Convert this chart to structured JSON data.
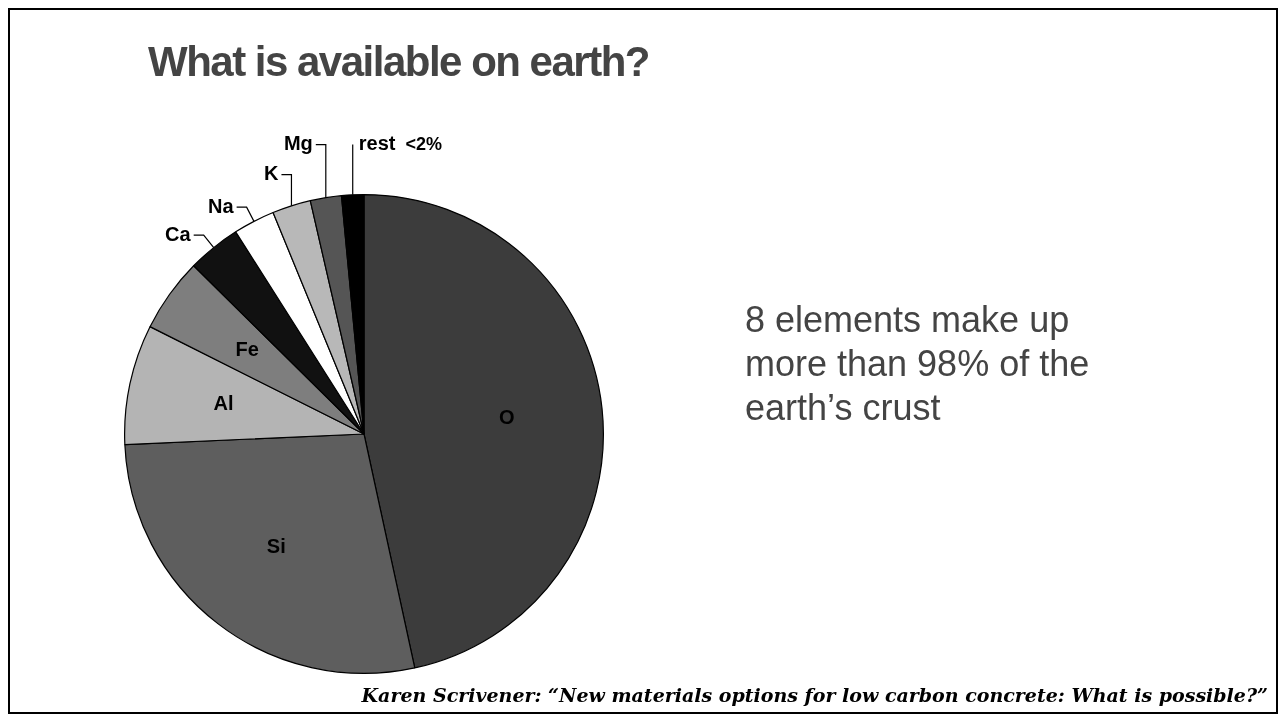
{
  "chart_data": {
    "type": "pie",
    "title": "What is available on earth?",
    "categories": [
      "O",
      "Si",
      "Al",
      "Fe",
      "Ca",
      "Na",
      "K",
      "Mg",
      "rest"
    ],
    "values": [
      46.6,
      27.7,
      8.1,
      5.0,
      3.6,
      2.8,
      2.6,
      2.1,
      1.5
    ],
    "colors": [
      "#3c3c3c",
      "#5e5e5e",
      "#b4b4b4",
      "#7e7e7e",
      "#111111",
      "#ffffff",
      "#b8b8b8",
      "#555555",
      "#000000"
    ],
    "value_labels": [
      null,
      null,
      null,
      null,
      null,
      null,
      null,
      null,
      "<2%"
    ],
    "legend": false,
    "annotations": [
      "8 elements make up more than 98% of the earth’s crust",
      "Karen Scrivener: “New materials options for low carbon concrete: What is possible?”"
    ]
  }
}
